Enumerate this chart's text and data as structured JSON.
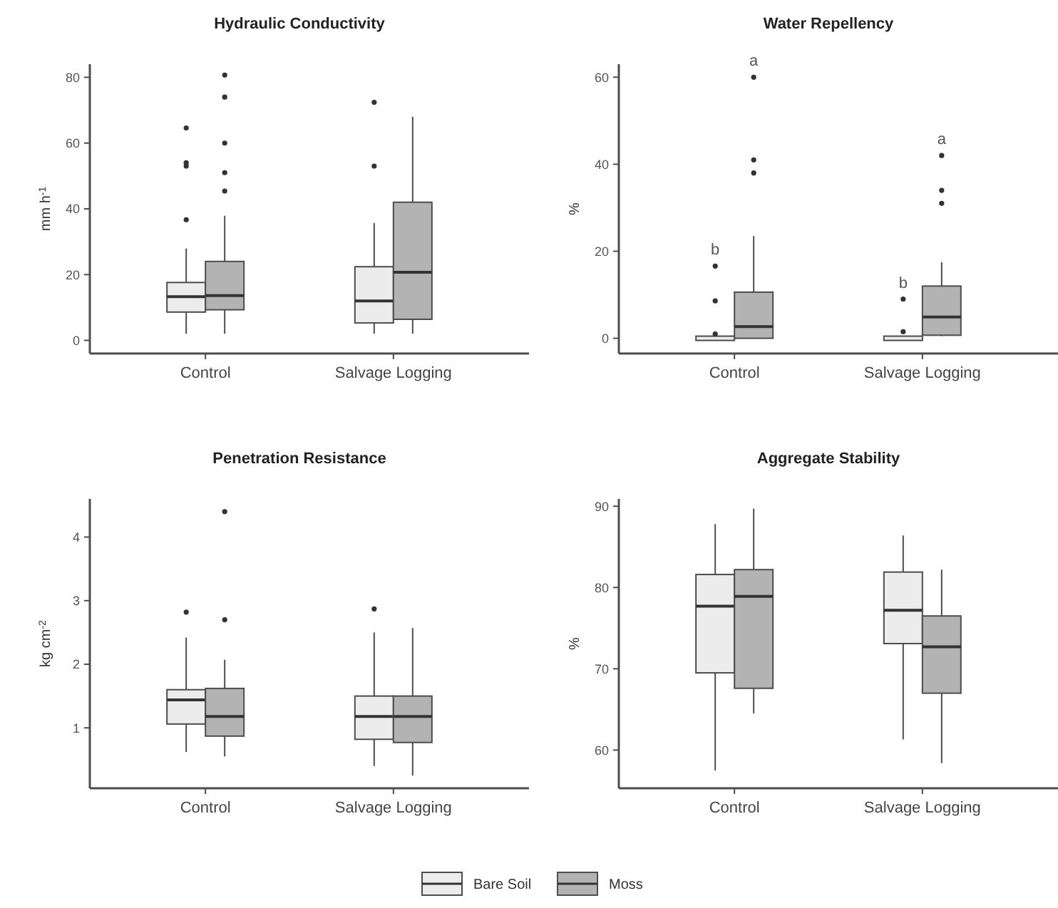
{
  "chart_data": [
    {
      "type": "box",
      "title": "Hydraulic Conductivity",
      "ylabel": "mm h$^{-1}$",
      "categories": [
        "Control",
        "Salvage Logging"
      ],
      "ylim": [
        -4,
        84
      ],
      "legend": "bottom",
      "yticks": [
        0,
        20,
        40,
        60,
        80
      ],
      "series": [
        {
          "name": "Bare Soil",
          "color": "#ececec",
          "boxes": [
            {
              "low": 2,
              "q1": 8.6,
              "median": 13.3,
              "q3": 17.6,
              "high": 27.9,
              "outliers": [
                36.7,
                53,
                54,
                64.6
              ]
            },
            {
              "low": 2,
              "q1": 5.3,
              "median": 12,
              "q3": 22.4,
              "high": 35.7,
              "outliers": [
                53,
                72.4
              ]
            }
          ]
        },
        {
          "name": "Moss",
          "color": "#b3b3b3",
          "boxes": [
            {
              "low": 2,
              "q1": 9.3,
              "median": 13.6,
              "q3": 24,
              "high": 37.9,
              "outliers": [
                45.4,
                51,
                60,
                74,
                80.7
              ]
            },
            {
              "low": 2,
              "q1": 6.4,
              "median": 20.7,
              "q3": 42,
              "high": 68
            }
          ]
        }
      ]
    },
    {
      "type": "box",
      "title": "Water Repellency",
      "ylabel": "%",
      "categories": [
        "Control",
        "Salvage Logging"
      ],
      "ylim": [
        -3.5,
        63
      ],
      "yticks": [
        0,
        20,
        40,
        60
      ],
      "legend": "bottom",
      "annotations": [
        "b",
        "b",
        "a",
        "a"
      ],
      "series": [
        {
          "name": "Bare Soil",
          "color": "#ececec",
          "boxes": [
            {
              "low": 0,
              "q1": 0,
              "median": 0,
              "q3": 0,
              "high": 0,
              "outliers": [
                1,
                8.6,
                16.6
              ]
            },
            {
              "low": 0,
              "q1": 0,
              "median": 0,
              "q3": 0,
              "high": 0,
              "outliers": [
                1.5,
                9
              ]
            }
          ]
        },
        {
          "name": "Moss",
          "color": "#b3b3b3",
          "boxes": [
            {
              "low": 0,
              "q1": 0,
              "median": 2.7,
              "q3": 10.6,
              "high": 23.5,
              "outliers": [
                38,
                41,
                60
              ]
            },
            {
              "low": 0.5,
              "q1": 0.7,
              "median": 4.9,
              "q3": 12,
              "high": 17.5,
              "outliers": [
                31,
                34,
                42
              ]
            }
          ]
        }
      ]
    },
    {
      "type": "box",
      "title": "Penetration Resistance",
      "ylabel": "kg cm$^{-2}$",
      "categories": [
        "Control",
        "Salvage Logging"
      ],
      "ylim": [
        0.05,
        4.6
      ],
      "yticks": [
        1,
        2,
        3,
        4
      ],
      "legend": "bottom",
      "series": [
        {
          "name": "Bare Soil",
          "color": "#ececec",
          "boxes": [
            {
              "low": 0.62,
              "q1": 1.06,
              "median": 1.44,
              "q3": 1.6,
              "high": 2.42,
              "outliers": [
                2.82
              ]
            },
            {
              "low": 0.4,
              "q1": 0.82,
              "median": 1.18,
              "q3": 1.5,
              "high": 2.5,
              "outliers": [
                2.87
              ]
            }
          ]
        },
        {
          "name": "Moss",
          "color": "#b3b3b3",
          "boxes": [
            {
              "low": 0.55,
              "q1": 0.87,
              "median": 1.18,
              "q3": 1.62,
              "high": 2.07,
              "outliers": [
                2.7,
                4.4
              ]
            },
            {
              "low": 0.25,
              "q1": 0.77,
              "median": 1.18,
              "q3": 1.5,
              "high": 2.57
            }
          ]
        }
      ]
    },
    {
      "type": "box",
      "title": "Aggregate Stability",
      "ylabel": "%",
      "categories": [
        "Control",
        "Salvage Logging"
      ],
      "ylim": [
        55.3,
        90.9
      ],
      "yticks": [
        60,
        70,
        80,
        90
      ],
      "legend": "bottom",
      "series": [
        {
          "name": "Bare Soil",
          "color": "#ececec",
          "boxes": [
            {
              "low": 57.5,
              "q1": 69.5,
              "median": 77.7,
              "q3": 81.6,
              "high": 87.8
            },
            {
              "low": 61.3,
              "q1": 73.1,
              "median": 77.2,
              "q3": 81.9,
              "high": 86.4
            }
          ]
        },
        {
          "name": "Moss",
          "color": "#b3b3b3",
          "boxes": [
            {
              "low": 64.5,
              "q1": 67.6,
              "median": 78.9,
              "q3": 82.2,
              "high": 89.7
            },
            {
              "low": 58.4,
              "q1": 67,
              "median": 72.7,
              "q3": 76.5,
              "high": 82.2
            }
          ]
        }
      ]
    }
  ]
}
